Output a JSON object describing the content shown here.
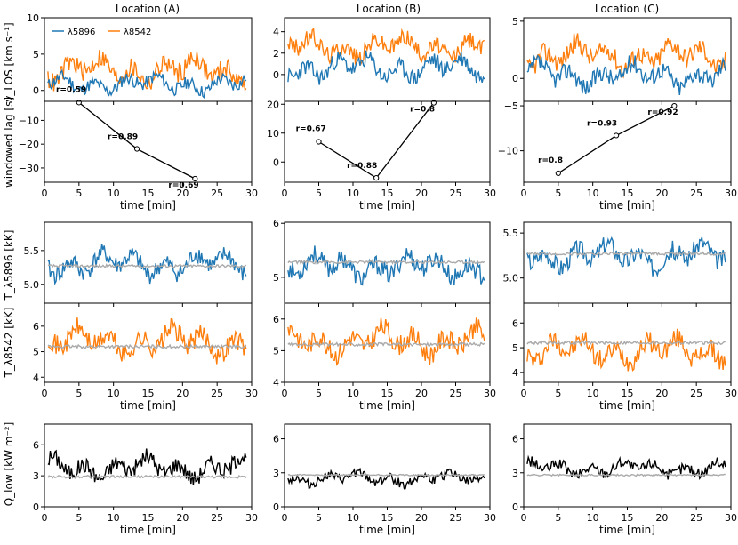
{
  "figure": {
    "col_titles": [
      "Location (A)",
      "Location (B)",
      "Location (C)"
    ],
    "legend": [
      "λ5896",
      "λ8542"
    ],
    "colors": {
      "l5896": "#1f77b4",
      "l8542": "#ff7f0e",
      "ref": "#aaaaaa",
      "lag": "#000000",
      "r_label": "#999999"
    },
    "row_labels": {
      "vlos": "v_LOS [km s⁻¹]",
      "lag": "windowed lag [s]",
      "t5896": "T_λ5896 [kK]",
      "t8542": "T_λ8542 [kK]",
      "q": "Q_low [kW m⁻²]"
    },
    "xlabel": "time [min]"
  },
  "chart_data": [
    {
      "type": "line",
      "name": "vlos",
      "xlim": [
        0,
        30
      ],
      "xticks": [
        "0",
        "5",
        "10",
        "15",
        "20",
        "25",
        "30"
      ],
      "panels": [
        {
          "ylim": [
            -1.5,
            10
          ],
          "yticks": [
            0,
            5,
            10
          ],
          "tick_labels": [
            "0",
            "5",
            "10"
          ],
          "l5896_mean": 0.9,
          "l5896_amp": 1.1,
          "l8542_mean": 2.8,
          "l8542_amp": 1.7,
          "seed": 11
        },
        {
          "ylim": [
            -2.5,
            5.3
          ],
          "yticks": [
            0,
            2,
            4
          ],
          "tick_labels": [
            "0",
            "2",
            "4"
          ],
          "l5896_mean": 0.6,
          "l5896_amp": 1.0,
          "l8542_mean": 2.6,
          "l8542_amp": 1.0,
          "seed": 23
        },
        {
          "ylim": [
            -2,
            5.3
          ],
          "yticks": [
            0,
            5
          ],
          "tick_labels": [
            "0",
            "5"
          ],
          "l5896_mean": 0.3,
          "l5896_amp": 1.0,
          "l8542_mean": 2.0,
          "l8542_amp": 1.1,
          "seed": 37
        }
      ]
    },
    {
      "type": "line",
      "name": "lag",
      "xlim": [
        0,
        30
      ],
      "xticks": [
        "0",
        "5",
        "10",
        "15",
        "20",
        "25",
        "30"
      ],
      "panels": [
        {
          "ylim": [
            -36,
            -2
          ],
          "yticks": [
            -10,
            -20,
            -30
          ],
          "tick_labels": [
            "−10",
            "−20",
            "−30"
          ],
          "points": [
            [
              5,
              -2.5
            ],
            [
              13.4,
              -22
            ],
            [
              21.8,
              -34.5
            ]
          ],
          "r_labels": [
            "r=0.59",
            "r=0.89",
            "r=0.69"
          ]
        },
        {
          "ylim": [
            -7,
            21
          ],
          "yticks": [
            0,
            10,
            20
          ],
          "tick_labels": [
            "0",
            "10",
            "20"
          ],
          "points": [
            [
              5,
              7
            ],
            [
              13.4,
              -5.5
            ],
            [
              21.8,
              20.5
            ]
          ],
          "r_labels": [
            "r=0.67",
            "r=0.88",
            "r=0.8"
          ]
        },
        {
          "ylim": [
            -13.5,
            -4.5
          ],
          "yticks": [
            -5,
            -10
          ],
          "tick_labels": [
            "−5",
            "−10"
          ],
          "points": [
            [
              5,
              -12.5
            ],
            [
              13.4,
              -8.3
            ],
            [
              21.8,
              -5
            ]
          ],
          "r_labels": [
            "r=0.8",
            "r=0.93",
            "r=0.92"
          ]
        }
      ]
    },
    {
      "type": "line",
      "name": "t5896",
      "xlim": [
        0,
        30
      ],
      "panels": [
        {
          "ylim": [
            4.72,
            5.92
          ],
          "yticks": [
            5.0,
            5.5
          ],
          "tick_labels": [
            "5.0",
            "5.5"
          ],
          "mean": 5.3,
          "amp": 0.17,
          "ref": 5.27,
          "seed": 41
        },
        {
          "ylim": [
            4.52,
            6.02
          ],
          "yticks": [
            5,
            6
          ],
          "tick_labels": [
            "5",
            "6"
          ],
          "mean": 5.2,
          "amp": 0.22,
          "ref": 5.28,
          "seed": 53
        },
        {
          "ylim": [
            4.72,
            5.62
          ],
          "yticks": [
            5.0,
            5.5
          ],
          "tick_labels": [
            "5.0",
            "5.5"
          ],
          "mean": 5.25,
          "amp": 0.13,
          "ref": 5.27,
          "seed": 67
        }
      ]
    },
    {
      "type": "line",
      "name": "t8542",
      "xlim": [
        0,
        30
      ],
      "xticks": [
        "0",
        "5",
        "10",
        "15",
        "20",
        "25",
        "30"
      ],
      "panels": [
        {
          "ylim": [
            3.8,
            6.9
          ],
          "yticks": [
            4,
            5,
            6
          ],
          "tick_labels": [
            "4",
            "5",
            "6"
          ],
          "mean": 5.4,
          "amp": 0.5,
          "ref": 5.2,
          "seed": 71
        },
        {
          "ylim": [
            4.0,
            6.5
          ],
          "yticks": [
            4,
            5,
            6
          ],
          "tick_labels": [
            "4",
            "5",
            "6"
          ],
          "mean": 5.3,
          "amp": 0.4,
          "ref": 5.2,
          "seed": 83
        },
        {
          "ylim": [
            3.6,
            6.8
          ],
          "yticks": [
            4,
            5,
            6
          ],
          "tick_labels": [
            "4",
            "5",
            "6"
          ],
          "mean": 4.9,
          "amp": 0.5,
          "ref": 5.2,
          "seed": 97
        }
      ]
    },
    {
      "type": "line",
      "name": "q",
      "xlim": [
        0,
        30
      ],
      "xticks": [
        "0",
        "5",
        "10",
        "15",
        "20",
        "25",
        "30"
      ],
      "panels": [
        {
          "ylim": [
            0,
            8
          ],
          "yticks": [
            0,
            3,
            6
          ],
          "tick_labels": [
            "0",
            "3",
            "6"
          ],
          "mean": 3.8,
          "amp": 1.0,
          "ref": 2.9,
          "seed": 101
        },
        {
          "ylim": [
            0,
            7.3
          ],
          "yticks": [
            0,
            3,
            6
          ],
          "tick_labels": [
            "0",
            "3",
            "6"
          ],
          "mean": 2.5,
          "amp": 0.5,
          "ref": 2.8,
          "seed": 113
        },
        {
          "ylim": [
            0,
            7.3
          ],
          "yticks": [
            0,
            3,
            6
          ],
          "tick_labels": [
            "0",
            "3",
            "6"
          ],
          "mean": 3.4,
          "amp": 0.6,
          "ref": 2.8,
          "seed": 127
        }
      ]
    }
  ]
}
